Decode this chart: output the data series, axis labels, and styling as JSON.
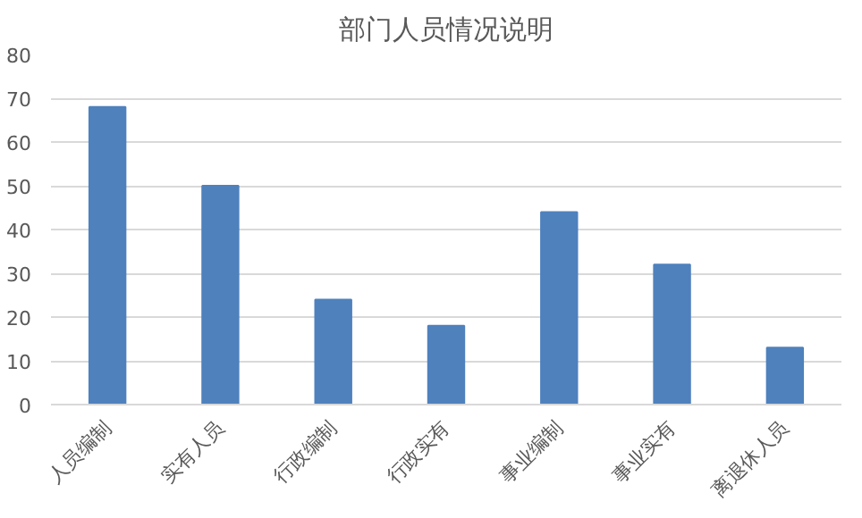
{
  "chart_data": {
    "type": "bar",
    "title": "部门人员情况说明",
    "categories": [
      "人员编制",
      "实有人员",
      "行政编制",
      "行政实有",
      "事业编制",
      "事业实有",
      "离退休人员"
    ],
    "values": [
      68,
      50,
      24,
      18,
      44,
      32,
      13
    ],
    "color": "#4f81bd",
    "ylim": [
      0,
      80
    ],
    "yticks": [
      0,
      10,
      20,
      30,
      40,
      50,
      60,
      70,
      80
    ],
    "grid": "y"
  }
}
